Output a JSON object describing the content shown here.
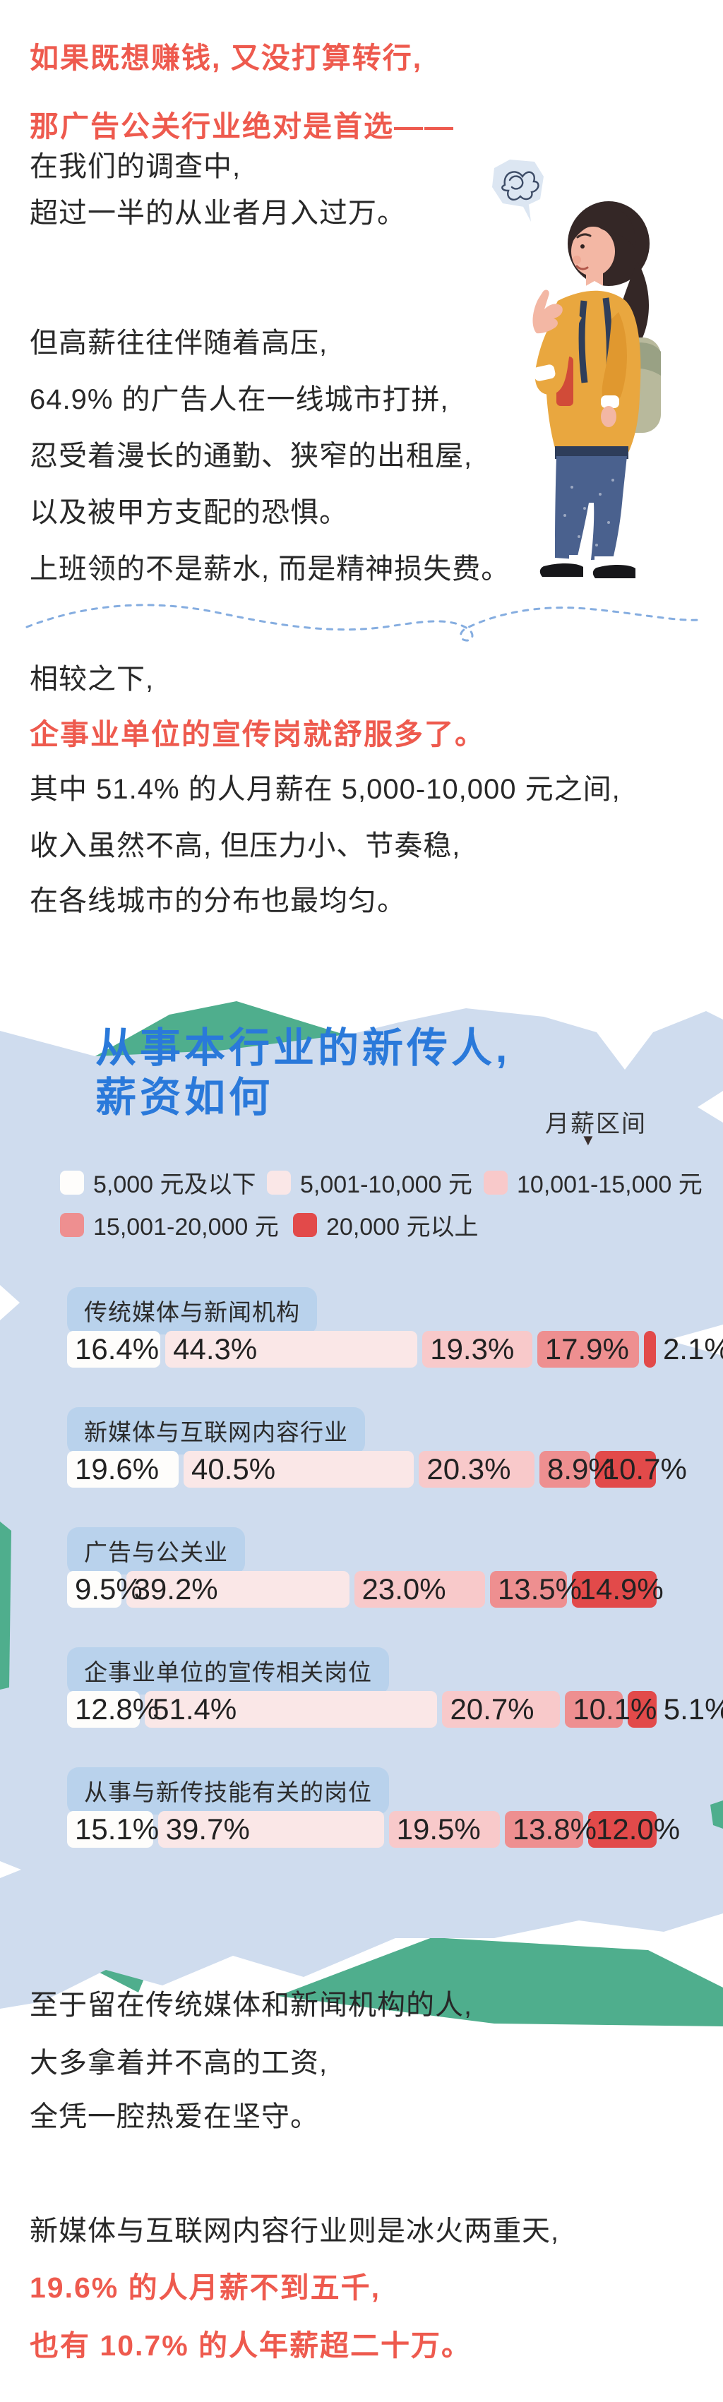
{
  "colors": {
    "accent_red": "#ee5a4e",
    "title_blue": "#2a79da",
    "card_bg": "#cfdcee",
    "bubble_bg": "#b9d2ec",
    "green_accent": "#4fae8d",
    "dashed_line": "#85ade0",
    "body_text": "#282828"
  },
  "intro": {
    "red1": "如果既想赚钱, 又没打算转行,",
    "red2": "那广告公关行业绝对是首选——",
    "line1": "在我们的调查中,",
    "line2": "超过一半的从业者月入过万。"
  },
  "pressure": {
    "line1": "但高薪往往伴随着高压,",
    "line2": "64.9% 的广告人在一线城市打拼,",
    "line3": "忍受着漫长的通勤、狭窄的出租屋,",
    "line4": "以及被甲方支配的恐惧。",
    "line5": "上班领的不是薪水, 而是精神损失费。"
  },
  "compare": {
    "line1": "相较之下,",
    "red1": "企事业单位的宣传岗就舒服多了。",
    "line2": "其中 51.4% 的人月薪在 5,000-10,000 元之间,",
    "line3": "收入虽然不高, 但压力小、节奏稳,",
    "line4": "在各线城市的分布也最均匀。"
  },
  "card": {
    "title_line1": "从事本行业的新传人,",
    "title_line2": "薪资如何",
    "axis_label": "月薪区间",
    "axis_arrow": "▼",
    "legend": [
      {
        "label": "5,000 元及以下",
        "color": "#fefdfb"
      },
      {
        "label": "5,001-10,000 元",
        "color": "#fae7e7"
      },
      {
        "label": "10,001-15,000 元",
        "color": "#f8c9ca"
      },
      {
        "label": "15,001-20,000 元",
        "color": "#ee8f90"
      },
      {
        "label": "20,000 元以上",
        "color": "#e24a4a"
      }
    ]
  },
  "chart_data": {
    "type": "bar",
    "stacked": true,
    "orientation": "horizontal",
    "unit": "%",
    "title": "从事本行业的新传人, 薪资如何",
    "legend_position": "top",
    "xlim": [
      0,
      100
    ],
    "categories": [
      "传统媒体与新闻机构",
      "新媒体与互联网内容行业",
      "广告与公关业",
      "企事业单位的宣传相关岗位",
      "从事与新传技能有关的岗位"
    ],
    "series": [
      {
        "name": "5,000 元及以下",
        "color": "#fefdfb",
        "values": [
          16.4,
          19.6,
          9.5,
          12.8,
          15.1
        ]
      },
      {
        "name": "5,001-10,000 元",
        "color": "#fae7e7",
        "values": [
          44.3,
          40.5,
          39.2,
          51.4,
          39.7
        ]
      },
      {
        "name": "10,001-15,000 元",
        "color": "#f8c9ca",
        "values": [
          19.3,
          20.3,
          23.0,
          20.7,
          19.5
        ]
      },
      {
        "name": "15,001-20,000 元",
        "color": "#ee8f90",
        "values": [
          17.9,
          8.9,
          13.5,
          10.1,
          13.8
        ]
      },
      {
        "name": "20,000 元以上",
        "color": "#e24a4a",
        "values": [
          2.1,
          10.7,
          14.9,
          5.1,
          12.0
        ]
      }
    ]
  },
  "bars": {
    "rows": [
      {
        "label": "传统媒体与新闻机构",
        "cells": [
          "16.4%",
          "44.3%",
          "19.3%",
          "17.9%",
          "2.1%"
        ]
      },
      {
        "label": "新媒体与互联网内容行业",
        "cells": [
          "19.6%",
          "40.5%",
          "20.3%",
          "8.9%",
          "10.7%"
        ]
      },
      {
        "label": "广告与公关业",
        "cells": [
          "9.5%",
          "39.2%",
          "23.0%",
          "13.5%",
          "14.9%"
        ]
      },
      {
        "label": "企事业单位的宣传相关岗位",
        "cells": [
          "12.8%",
          "51.4%",
          "20.7%",
          "10.1%",
          "5.1%"
        ]
      },
      {
        "label": "从事与新传技能有关的岗位",
        "cells": [
          "15.1%",
          "39.7%",
          "19.5%",
          "13.8%",
          "12.0%"
        ]
      }
    ]
  },
  "outro": {
    "line1": "至于留在传统媒体和新闻机构的人,",
    "line2": "大多拿着并不高的工资,",
    "line3": "全凭一腔热爱在坚守。",
    "line4": "新媒体与互联网内容行业则是冰火两重天,",
    "red1": "19.6% 的人月薪不到五千,",
    "red2": "也有 10.7% 的人年薪超二十万。"
  }
}
